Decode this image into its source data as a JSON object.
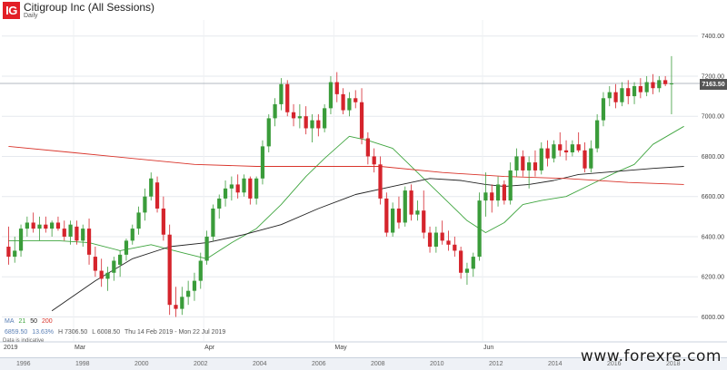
{
  "header": {
    "logo_text": "IG",
    "title": "Citigroup Inc (All Sessions)",
    "subtitle": "Daily"
  },
  "indicators": {
    "ma_label": "MA",
    "ma_periods": [
      "21",
      "50",
      "200"
    ],
    "ma_colors": [
      "#3fa53f",
      "#222222",
      "#d9342b"
    ],
    "open_line": "6859.50",
    "change": "13.63%",
    "high": "H 7306.50",
    "low": "L 6008.50",
    "range": "Thu 14 Feb 2019 - Mon 22 Jul 2019"
  },
  "disclaimer": "Data is indicative",
  "last_price": "7163.50",
  "watermark": "www.forexre.com",
  "navigator": {
    "years": [
      "1996",
      "1998",
      "2000",
      "2002",
      "2004",
      "2006",
      "2008",
      "2010",
      "2012",
      "2014",
      "2016",
      "2018"
    ]
  },
  "chart_data": {
    "type": "candlestick",
    "title": "Citigroup Inc (All Sessions)",
    "subtitle": "Daily",
    "y_ticks": [
      6000,
      6200,
      6400,
      6600,
      6800,
      7000,
      7200,
      7400
    ],
    "y_tick_labels": [
      "6000.00",
      "6200.00",
      "6400.00",
      "6600.00",
      "6800.00",
      "7000.00",
      "7200.00",
      "7400.00"
    ],
    "ylim": [
      5880,
      7480
    ],
    "x_tick_labels": [
      "2019",
      "Mar",
      "Apr",
      "May",
      "Jun"
    ],
    "x_tick_positions": [
      0,
      11,
      32,
      53,
      77
    ],
    "n_candles": 110,
    "candles": [
      {
        "o": 6350,
        "h": 6450,
        "l": 6260,
        "c": 6300
      },
      {
        "o": 6300,
        "h": 6400,
        "l": 6270,
        "c": 6330
      },
      {
        "o": 6330,
        "h": 6460,
        "l": 6300,
        "c": 6440
      },
      {
        "o": 6440,
        "h": 6500,
        "l": 6400,
        "c": 6470
      },
      {
        "o": 6470,
        "h": 6520,
        "l": 6420,
        "c": 6440
      },
      {
        "o": 6440,
        "h": 6500,
        "l": 6380,
        "c": 6460
      },
      {
        "o": 6460,
        "h": 6500,
        "l": 6420,
        "c": 6440
      },
      {
        "o": 6440,
        "h": 6480,
        "l": 6400,
        "c": 6470
      },
      {
        "o": 6470,
        "h": 6500,
        "l": 6430,
        "c": 6440
      },
      {
        "o": 6440,
        "h": 6480,
        "l": 6380,
        "c": 6400
      },
      {
        "o": 6400,
        "h": 6480,
        "l": 6360,
        "c": 6460
      },
      {
        "o": 6450,
        "h": 6480,
        "l": 6360,
        "c": 6380
      },
      {
        "o": 6380,
        "h": 6460,
        "l": 6350,
        "c": 6440
      },
      {
        "o": 6440,
        "h": 6490,
        "l": 6260,
        "c": 6310
      },
      {
        "o": 6300,
        "h": 6350,
        "l": 6200,
        "c": 6230
      },
      {
        "o": 6230,
        "h": 6290,
        "l": 6150,
        "c": 6190
      },
      {
        "o": 6190,
        "h": 6250,
        "l": 6130,
        "c": 6220
      },
      {
        "o": 6220,
        "h": 6300,
        "l": 6180,
        "c": 6280
      },
      {
        "o": 6260,
        "h": 6330,
        "l": 6200,
        "c": 6310
      },
      {
        "o": 6310,
        "h": 6390,
        "l": 6280,
        "c": 6380
      },
      {
        "o": 6380,
        "h": 6460,
        "l": 6360,
        "c": 6440
      },
      {
        "o": 6440,
        "h": 6550,
        "l": 6410,
        "c": 6520
      },
      {
        "o": 6520,
        "h": 6640,
        "l": 6480,
        "c": 6600
      },
      {
        "o": 6600,
        "h": 6720,
        "l": 6580,
        "c": 6690
      },
      {
        "o": 6670,
        "h": 6700,
        "l": 6520,
        "c": 6540
      },
      {
        "o": 6540,
        "h": 6600,
        "l": 6380,
        "c": 6410
      },
      {
        "o": 6410,
        "h": 6460,
        "l": 6010,
        "c": 6060
      },
      {
        "o": 6060,
        "h": 6150,
        "l": 6000,
        "c": 6040
      },
      {
        "o": 6040,
        "h": 6150,
        "l": 6010,
        "c": 6100
      },
      {
        "o": 6100,
        "h": 6180,
        "l": 6060,
        "c": 6130
      },
      {
        "o": 6130,
        "h": 6220,
        "l": 6080,
        "c": 6180
      },
      {
        "o": 6180,
        "h": 6320,
        "l": 6140,
        "c": 6280
      },
      {
        "o": 6280,
        "h": 6430,
        "l": 6260,
        "c": 6400
      },
      {
        "o": 6400,
        "h": 6560,
        "l": 6380,
        "c": 6540
      },
      {
        "o": 6540,
        "h": 6610,
        "l": 6490,
        "c": 6590
      },
      {
        "o": 6590,
        "h": 6680,
        "l": 6550,
        "c": 6640
      },
      {
        "o": 6640,
        "h": 6700,
        "l": 6580,
        "c": 6660
      },
      {
        "o": 6660,
        "h": 6710,
        "l": 6590,
        "c": 6620
      },
      {
        "o": 6620,
        "h": 6710,
        "l": 6600,
        "c": 6690
      },
      {
        "o": 6690,
        "h": 6700,
        "l": 6560,
        "c": 6590
      },
      {
        "o": 6590,
        "h": 6700,
        "l": 6560,
        "c": 6690
      },
      {
        "o": 6690,
        "h": 6880,
        "l": 6660,
        "c": 6850
      },
      {
        "o": 6850,
        "h": 7010,
        "l": 6820,
        "c": 6990
      },
      {
        "o": 6990,
        "h": 7090,
        "l": 6950,
        "c": 7060
      },
      {
        "o": 7060,
        "h": 7190,
        "l": 7030,
        "c": 7160
      },
      {
        "o": 7160,
        "h": 7180,
        "l": 7000,
        "c": 7020
      },
      {
        "o": 7020,
        "h": 7060,
        "l": 6950,
        "c": 6990
      },
      {
        "o": 6990,
        "h": 7060,
        "l": 6940,
        "c": 7000
      },
      {
        "o": 7000,
        "h": 7050,
        "l": 6910,
        "c": 6940
      },
      {
        "o": 6940,
        "h": 7010,
        "l": 6870,
        "c": 6980
      },
      {
        "o": 6980,
        "h": 7010,
        "l": 6900,
        "c": 6940
      },
      {
        "o": 6940,
        "h": 7060,
        "l": 6920,
        "c": 7040
      },
      {
        "o": 7040,
        "h": 7200,
        "l": 7010,
        "c": 7170
      },
      {
        "o": 7170,
        "h": 7220,
        "l": 7070,
        "c": 7110
      },
      {
        "o": 7110,
        "h": 7140,
        "l": 7010,
        "c": 7030
      },
      {
        "o": 7030,
        "h": 7120,
        "l": 7000,
        "c": 7090
      },
      {
        "o": 7090,
        "h": 7130,
        "l": 7040,
        "c": 7070
      },
      {
        "o": 7070,
        "h": 7140,
        "l": 6860,
        "c": 6890
      },
      {
        "o": 6890,
        "h": 6920,
        "l": 6760,
        "c": 6800
      },
      {
        "o": 6800,
        "h": 6840,
        "l": 6720,
        "c": 6760
      },
      {
        "o": 6760,
        "h": 6800,
        "l": 6560,
        "c": 6590
      },
      {
        "o": 6590,
        "h": 6620,
        "l": 6400,
        "c": 6420
      },
      {
        "o": 6420,
        "h": 6570,
        "l": 6400,
        "c": 6540
      },
      {
        "o": 6540,
        "h": 6600,
        "l": 6440,
        "c": 6470
      },
      {
        "o": 6470,
        "h": 6650,
        "l": 6450,
        "c": 6630
      },
      {
        "o": 6630,
        "h": 6660,
        "l": 6480,
        "c": 6510
      },
      {
        "o": 6510,
        "h": 6580,
        "l": 6480,
        "c": 6530
      },
      {
        "o": 6530,
        "h": 6630,
        "l": 6390,
        "c": 6420
      },
      {
        "o": 6420,
        "h": 6450,
        "l": 6320,
        "c": 6350
      },
      {
        "o": 6350,
        "h": 6450,
        "l": 6320,
        "c": 6420
      },
      {
        "o": 6420,
        "h": 6480,
        "l": 6360,
        "c": 6380
      },
      {
        "o": 6380,
        "h": 6430,
        "l": 6330,
        "c": 6360
      },
      {
        "o": 6360,
        "h": 6400,
        "l": 6300,
        "c": 6330
      },
      {
        "o": 6330,
        "h": 6350,
        "l": 6190,
        "c": 6220
      },
      {
        "o": 6220,
        "h": 6270,
        "l": 6160,
        "c": 6240
      },
      {
        "o": 6240,
        "h": 6320,
        "l": 6200,
        "c": 6300
      },
      {
        "o": 6300,
        "h": 6620,
        "l": 6280,
        "c": 6580
      },
      {
        "o": 6580,
        "h": 6720,
        "l": 6500,
        "c": 6620
      },
      {
        "o": 6620,
        "h": 6660,
        "l": 6520,
        "c": 6580
      },
      {
        "o": 6580,
        "h": 6700,
        "l": 6550,
        "c": 6660
      },
      {
        "o": 6660,
        "h": 6680,
        "l": 6560,
        "c": 6580
      },
      {
        "o": 6580,
        "h": 6770,
        "l": 6560,
        "c": 6730
      },
      {
        "o": 6730,
        "h": 6840,
        "l": 6700,
        "c": 6800
      },
      {
        "o": 6800,
        "h": 6830,
        "l": 6700,
        "c": 6730
      },
      {
        "o": 6730,
        "h": 6800,
        "l": 6640,
        "c": 6770
      },
      {
        "o": 6770,
        "h": 6830,
        "l": 6700,
        "c": 6730
      },
      {
        "o": 6730,
        "h": 6870,
        "l": 6710,
        "c": 6840
      },
      {
        "o": 6840,
        "h": 6880,
        "l": 6750,
        "c": 6790
      },
      {
        "o": 6790,
        "h": 6880,
        "l": 6770,
        "c": 6860
      },
      {
        "o": 6860,
        "h": 6920,
        "l": 6800,
        "c": 6830
      },
      {
        "o": 6830,
        "h": 6880,
        "l": 6780,
        "c": 6820
      },
      {
        "o": 6820,
        "h": 6880,
        "l": 6800,
        "c": 6860
      },
      {
        "o": 6860,
        "h": 6920,
        "l": 6820,
        "c": 6830
      },
      {
        "o": 6830,
        "h": 6870,
        "l": 6720,
        "c": 6740
      },
      {
        "o": 6740,
        "h": 6880,
        "l": 6720,
        "c": 6840
      },
      {
        "o": 6840,
        "h": 7010,
        "l": 6820,
        "c": 6980
      },
      {
        "o": 6980,
        "h": 7120,
        "l": 6950,
        "c": 7090
      },
      {
        "o": 7090,
        "h": 7150,
        "l": 7050,
        "c": 7120
      },
      {
        "o": 7120,
        "h": 7160,
        "l": 7040,
        "c": 7070
      },
      {
        "o": 7070,
        "h": 7170,
        "l": 7050,
        "c": 7140
      },
      {
        "o": 7140,
        "h": 7180,
        "l": 7060,
        "c": 7100
      },
      {
        "o": 7100,
        "h": 7170,
        "l": 7060,
        "c": 7150
      },
      {
        "o": 7150,
        "h": 7190,
        "l": 7090,
        "c": 7120
      },
      {
        "o": 7120,
        "h": 7200,
        "l": 7100,
        "c": 7170
      },
      {
        "o": 7170,
        "h": 7210,
        "l": 7110,
        "c": 7140
      },
      {
        "o": 7140,
        "h": 7200,
        "l": 7120,
        "c": 7180
      },
      {
        "o": 7180,
        "h": 7200,
        "l": 7150,
        "c": 7160
      },
      {
        "o": 7160,
        "h": 7300,
        "l": 7010,
        "c": 7163.5
      }
    ],
    "series": [
      {
        "name": "21",
        "color": "#3fa53f",
        "anchors": [
          [
            0,
            6380
          ],
          [
            8,
            6380
          ],
          [
            13,
            6370
          ],
          [
            18,
            6330
          ],
          [
            23,
            6360
          ],
          [
            28,
            6320
          ],
          [
            32,
            6290
          ],
          [
            36,
            6370
          ],
          [
            40,
            6440
          ],
          [
            44,
            6560
          ],
          [
            48,
            6700
          ],
          [
            51,
            6790
          ],
          [
            55,
            6900
          ],
          [
            58,
            6880
          ],
          [
            62,
            6840
          ],
          [
            66,
            6720
          ],
          [
            70,
            6600
          ],
          [
            74,
            6480
          ],
          [
            77,
            6420
          ],
          [
            80,
            6470
          ],
          [
            83,
            6560
          ],
          [
            86,
            6580
          ],
          [
            90,
            6600
          ],
          [
            94,
            6660
          ],
          [
            98,
            6720
          ],
          [
            101,
            6760
          ],
          [
            104,
            6860
          ],
          [
            109,
            6950
          ]
        ]
      },
      {
        "name": "50",
        "color": "#222222",
        "anchors": [
          [
            7,
            6030
          ],
          [
            14,
            6180
          ],
          [
            20,
            6290
          ],
          [
            26,
            6350
          ],
          [
            32,
            6370
          ],
          [
            38,
            6410
          ],
          [
            44,
            6460
          ],
          [
            50,
            6540
          ],
          [
            56,
            6610
          ],
          [
            62,
            6650
          ],
          [
            68,
            6690
          ],
          [
            73,
            6680
          ],
          [
            77,
            6660
          ],
          [
            80,
            6650
          ],
          [
            84,
            6660
          ],
          [
            88,
            6680
          ],
          [
            92,
            6710
          ],
          [
            96,
            6720
          ],
          [
            100,
            6730
          ],
          [
            104,
            6740
          ],
          [
            109,
            6750
          ]
        ]
      },
      {
        "name": "200",
        "color": "#d9342b",
        "anchors": [
          [
            0,
            6850
          ],
          [
            10,
            6820
          ],
          [
            20,
            6790
          ],
          [
            30,
            6760
          ],
          [
            40,
            6750
          ],
          [
            50,
            6750
          ],
          [
            60,
            6750
          ],
          [
            70,
            6720
          ],
          [
            80,
            6700
          ],
          [
            90,
            6690
          ],
          [
            100,
            6670
          ],
          [
            109,
            6660
          ]
        ]
      }
    ]
  }
}
